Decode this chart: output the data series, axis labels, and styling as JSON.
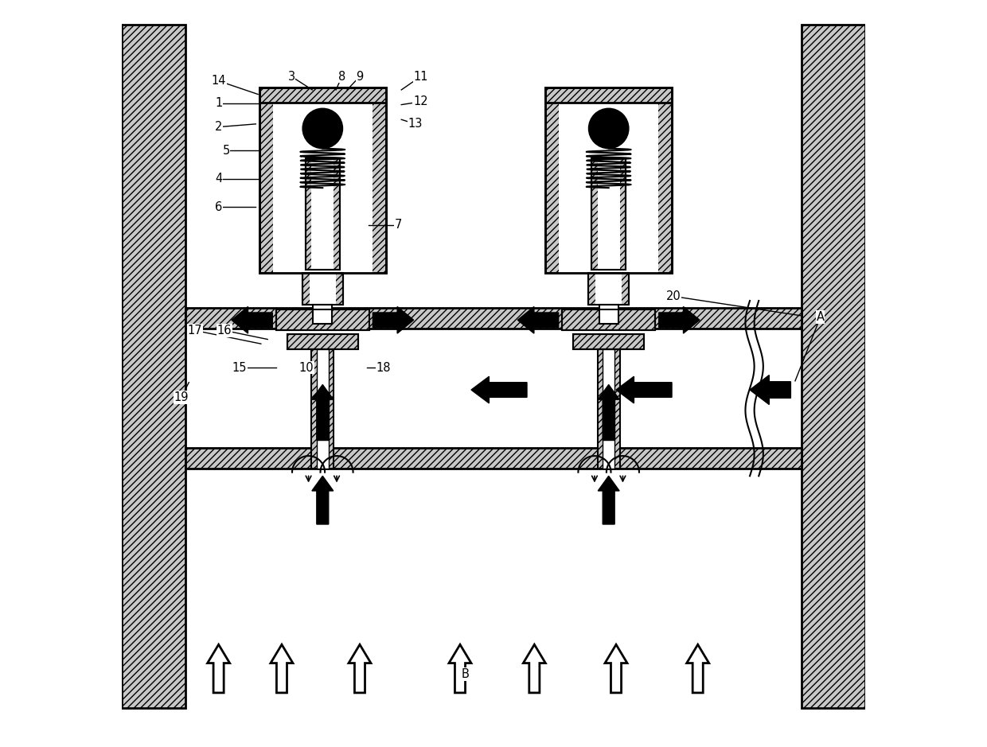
{
  "bg_color": "#ffffff",
  "line_color": "#000000",
  "fig_width": 12.4,
  "fig_height": 9.39
}
